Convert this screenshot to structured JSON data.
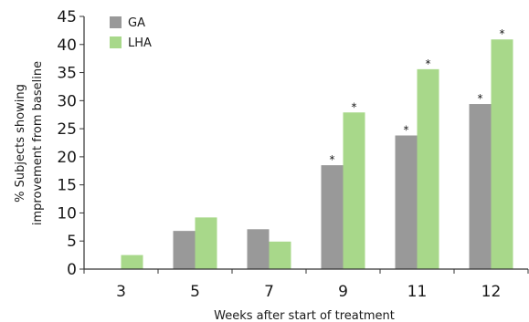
{
  "chart_data": {
    "type": "bar",
    "title": "",
    "xlabel": "Weeks after start of treatment",
    "ylabel_lines": [
      "% Subjects showing",
      "improvement from baseline"
    ],
    "categories": [
      "3",
      "5",
      "7",
      "9",
      "11",
      "12"
    ],
    "ylim": [
      0,
      45
    ],
    "yticks": [
      0,
      5,
      10,
      15,
      20,
      25,
      30,
      35,
      40,
      45
    ],
    "grid": false,
    "legend_position": "top-left",
    "series": [
      {
        "name": "GA",
        "color": "#999999",
        "values": [
          0,
          6.8,
          7.1,
          18.5,
          23.8,
          29.4
        ],
        "significant": [
          false,
          false,
          false,
          true,
          true,
          true
        ]
      },
      {
        "name": "LHA",
        "color": "#a8d88a",
        "values": [
          2.5,
          9.2,
          4.9,
          27.9,
          35.6,
          40.9
        ],
        "significant": [
          false,
          false,
          false,
          true,
          true,
          true
        ]
      }
    ],
    "significance_marker": "*"
  }
}
